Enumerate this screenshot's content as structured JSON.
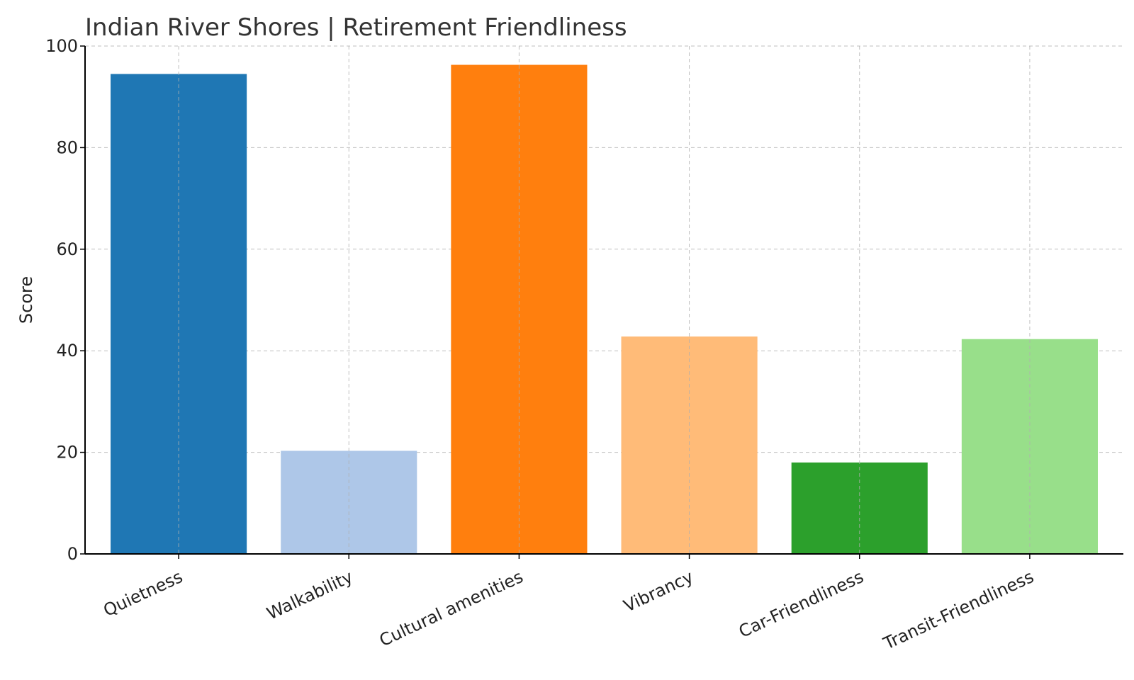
{
  "chart_data": {
    "type": "bar",
    "title": "Indian River Shores | Retirement Friendliness",
    "xlabel": "",
    "ylabel": "Score",
    "ylim": [
      0,
      100
    ],
    "yticks": [
      0,
      20,
      40,
      60,
      80,
      100
    ],
    "grid": true,
    "categories": [
      "Quietness",
      "Walkability",
      "Cultural amenities",
      "Vibrancy",
      "Car-Friendliness",
      "Transit-Friendliness"
    ],
    "values": [
      94.5,
      20.3,
      96.3,
      42.8,
      18.0,
      42.3
    ],
    "colors": [
      "#1f77b4",
      "#aec7e8",
      "#ff7f0e",
      "#ffbb78",
      "#2ca02c",
      "#98df8a"
    ]
  }
}
